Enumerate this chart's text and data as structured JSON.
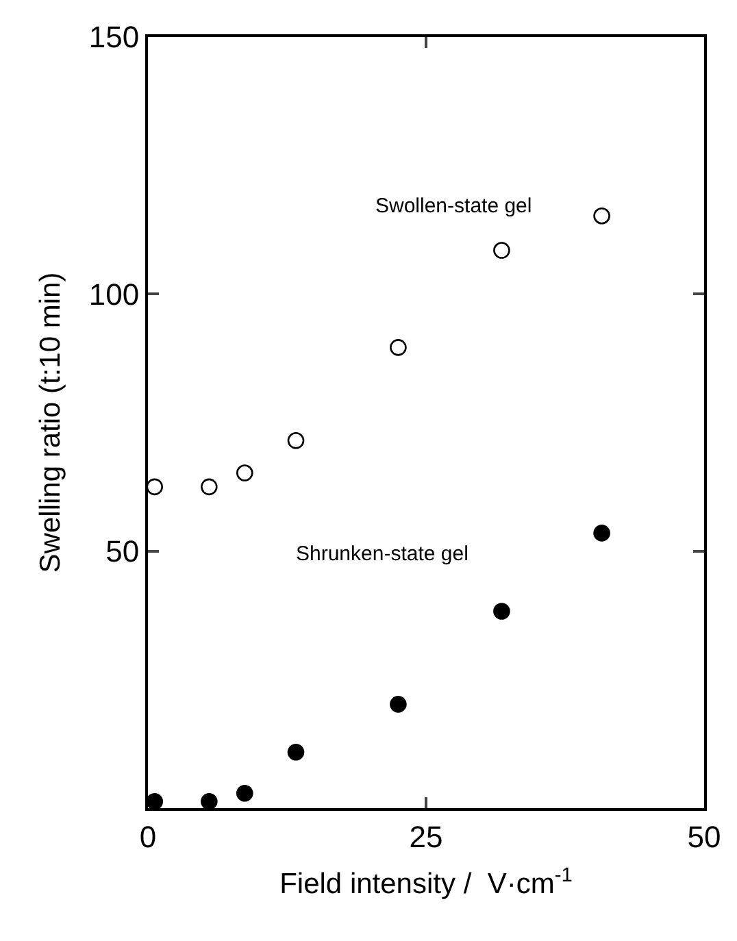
{
  "chart_data": {
    "type": "scatter",
    "xlabel": "Field intensity /  V·cm$^{-1}$",
    "ylabel": "Swelling ratio (t:10 min)",
    "xlim": [
      0,
      50
    ],
    "xticks": [
      0,
      25,
      50
    ],
    "ylim": [
      0,
      150
    ],
    "yticks": [
      50,
      100,
      150
    ],
    "legend": false,
    "marker": "circle",
    "series": [
      {
        "name": "Swollen-state gel",
        "color": "#ffffff",
        "x": [
          0.6,
          5.5,
          8.7,
          13.3,
          22.5,
          31.8,
          40.8
        ],
        "values": [
          62.5,
          62.5,
          65.2,
          71.5,
          89.6,
          108.5,
          115.2
        ]
      },
      {
        "name": "Shrunken-state gel",
        "color": "#000000",
        "x": [
          0.6,
          5.5,
          8.7,
          13.3,
          22.5,
          31.8,
          40.8
        ],
        "values": [
          1.3,
          1.3,
          2.9,
          10.9,
          20.2,
          38.3,
          53.5
        ]
      }
    ]
  }
}
